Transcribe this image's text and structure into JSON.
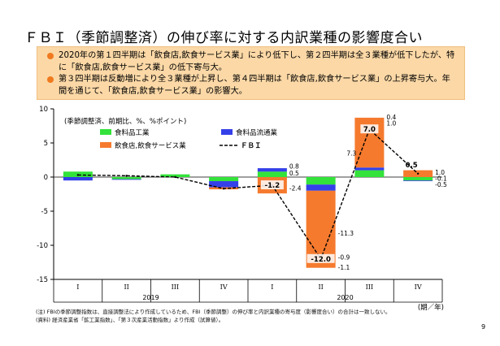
{
  "title": "ＦＢＩ（季節調整済）の伸び率に対する内訳業種の影響度合い",
  "summary": {
    "bullets": [
      "2020年の第１四半期は「飲食店,飲食サービス業」により低下し、第２四半期は全３業種が低下したが、特に「飲食店,飲食サービス業」の低下寄与大。",
      "第３四半期は反動増により全３業種が上昇し、第４四半期は「飲食店,飲食サービス業」の上昇寄与大。年間を通じて、「飲食店,飲食サービス業」の影響大。"
    ]
  },
  "chart_data": {
    "type": "bar",
    "stacked": true,
    "note": "(季節調整済、前期比、%、%ポイント)",
    "categories": [
      "I",
      "II",
      "III",
      "IV",
      "I",
      "II",
      "III",
      "IV"
    ],
    "year_labels": [
      "2019",
      "2020"
    ],
    "unit_label": "(期／年)",
    "ylim": [
      -15,
      10
    ],
    "yticks": [
      10,
      5,
      0,
      -5,
      -10,
      -15
    ],
    "series": [
      {
        "name": "食料品工業",
        "color": "#33e23a",
        "values": [
          0.8,
          -0.3,
          0.4,
          -0.6,
          0.8,
          -1.1,
          1.0,
          -0.5
        ]
      },
      {
        "name": "食料品流通業",
        "color": "#3440e8",
        "values": [
          -0.5,
          -0.1,
          0.0,
          -0.9,
          0.5,
          -0.9,
          0.4,
          -0.1
        ]
      },
      {
        "name": "飲食店,飲食サービス業",
        "color": "#f57a2e",
        "values": [
          0.0,
          0.0,
          0.0,
          -0.3,
          -2.4,
          -11.3,
          7.3,
          1.0
        ]
      }
    ],
    "line": {
      "name": "ＦＢＩ",
      "color": "#000000",
      "values": [
        0.3,
        0.2,
        0.0,
        -1.7,
        -1.2,
        -12.0,
        7.0,
        0.5
      ]
    },
    "annotations": [
      {
        "cat": 4,
        "series": 0,
        "text": "0.8"
      },
      {
        "cat": 4,
        "series": 1,
        "text": "0.5"
      },
      {
        "cat": 4,
        "series": 2,
        "text": "-2.4"
      },
      {
        "cat": 5,
        "series": 2,
        "text": "-11.3"
      },
      {
        "cat": 5,
        "series": 1,
        "text": "-0.9"
      },
      {
        "cat": 5,
        "series": 0,
        "text": "-1.1"
      },
      {
        "cat": 6,
        "series": 1,
        "text": "0.4"
      },
      {
        "cat": 6,
        "series": 0,
        "text": "1.0"
      },
      {
        "cat": 6,
        "series": 2,
        "text": "7.3"
      },
      {
        "cat": 7,
        "series": 2,
        "text": "1.0"
      },
      {
        "cat": 7,
        "series": 1,
        "text": "-0.1"
      },
      {
        "cat": 7,
        "series": 0,
        "text": "-0.5"
      }
    ],
    "fbi_labels": [
      {
        "cat": 4,
        "text": "-1.2"
      },
      {
        "cat": 5,
        "text": "-12.0"
      },
      {
        "cat": 6,
        "text": "7.0"
      },
      {
        "cat": 7,
        "text": "0.5"
      }
    ]
  },
  "footnotes": [
    "(注) FBIの季節調整指数は、直接調整法により作成しているため、FBI（季節調整）の伸び率と内訳業種の寄与度（影響度合い）の合計は一致しない。",
    "(資料) 経済産業省「鉱工業指数」、「第３次産業活動指数」より作成（試算値）。"
  ],
  "page_number": "9"
}
